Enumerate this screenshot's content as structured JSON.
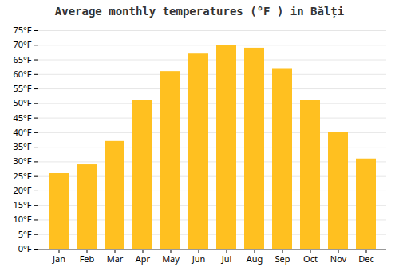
{
  "chart_data": {
    "type": "bar",
    "title": "Average monthly temperatures (°F ) in Bălți",
    "categories": [
      "Jan",
      "Feb",
      "Mar",
      "Apr",
      "May",
      "Jun",
      "Jul",
      "Aug",
      "Sep",
      "Oct",
      "Nov",
      "Dec"
    ],
    "values": [
      26,
      29,
      37,
      51,
      61,
      67,
      70,
      69,
      62,
      51,
      40,
      31
    ],
    "color": "#FFC020",
    "ylim": [
      0,
      75
    ],
    "yticks": [
      {
        "value": 0,
        "label": "0°F"
      },
      {
        "value": 5,
        "label": "5°F"
      },
      {
        "value": 10,
        "label": "10°F"
      },
      {
        "value": 15,
        "label": "15°F"
      },
      {
        "value": 20,
        "label": "20°F"
      },
      {
        "value": 25,
        "label": "25°F"
      },
      {
        "value": 30,
        "label": "30°F"
      },
      {
        "value": 35,
        "label": "35°F"
      },
      {
        "value": 40,
        "label": "40°F"
      },
      {
        "value": 45,
        "label": "45°F"
      },
      {
        "value": 50,
        "label": "50°F"
      },
      {
        "value": 55,
        "label": "55°F"
      },
      {
        "value": 60,
        "label": "60°F"
      },
      {
        "value": 65,
        "label": "65°F"
      },
      {
        "value": 70,
        "label": "70°F"
      },
      {
        "value": 75,
        "label": "75°F"
      }
    ],
    "grid": true
  }
}
